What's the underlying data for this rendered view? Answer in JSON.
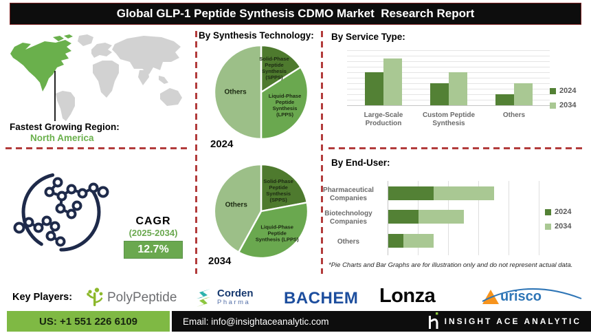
{
  "title": "Global GLP-1 Peptide Synthesis CDMO Market  Research Report",
  "region": {
    "label": "Fastest Growing Region:",
    "value": "North America"
  },
  "cagr": {
    "label": "CAGR",
    "period": "(2025-2034)",
    "value": "12.7%"
  },
  "footnote": "*Pie Charts and Bar Graphs are for illustration only and do not represent actual data.",
  "key_players": {
    "label": "Key Players:",
    "companies": [
      {
        "name": "PolyPeptide",
        "wordmark": "PolyPeptide"
      },
      {
        "name": "Corden Pharma",
        "line1": "Corden",
        "line2": "Pharma"
      },
      {
        "name": "BACHEM",
        "wordmark": "BACHEM"
      },
      {
        "name": "Lonza",
        "wordmark": "Lonza"
      },
      {
        "name": "Aurisco",
        "wordmark": "urisco"
      }
    ]
  },
  "footer": {
    "phone": "US: +1 551 226 6109",
    "email": "Email: info@insightaceanalytic.com",
    "brand": "INSIGHT ACE ANALYTIC"
  },
  "colors": {
    "accent_red": "#b23b3b",
    "title_bg": "#0d0d0d",
    "map_green": "#6ab04c",
    "pie_spps": "#4e7a2e",
    "pie_lpps": "#6aa84f",
    "pie_others": "#9cbf88",
    "bar_2024": "#538135",
    "bar_2034": "#a9c893",
    "molecule_navy": "#1e2a4a",
    "footer_green": "#7fb944"
  },
  "chart_data": [
    {
      "type": "pie",
      "title": "By Synthesis Technology:",
      "year": "2024",
      "slices": [
        {
          "label": "Solid-Phase Peptide Synthesis (SPPS)",
          "label_lines": [
            "Solid-Phase",
            "Peptide",
            "Synthesis",
            "(SPPS)"
          ],
          "value": 16,
          "color": "#4e7a2e"
        },
        {
          "label": "Liquid-Phase Peptide Synthesis (LPPS)",
          "label_lines": [
            "Liquid-Phase",
            "Peptide",
            "Synthesis",
            "(LPPS)"
          ],
          "value": 34,
          "color": "#6aa84f"
        },
        {
          "label": "Others",
          "label_lines": [
            "Others"
          ],
          "value": 50,
          "color": "#9cbf88"
        }
      ]
    },
    {
      "type": "pie",
      "title": "By Synthesis Technology:",
      "year": "2034",
      "slices": [
        {
          "label": "Solid-Phase Peptide Synthesis (SPPS)",
          "label_lines": [
            "Solid-Phase",
            "Peptide",
            "Synthesis",
            "(SPPS)"
          ],
          "value": 22,
          "color": "#4e7a2e"
        },
        {
          "label": "Liquid-Phase Peptide Synthesis (LPPS)",
          "label_lines": [
            "Liquid-Phase",
            "Peptide",
            "Synthesis (LPPS)"
          ],
          "value": 36,
          "color": "#6aa84f"
        },
        {
          "label": "Others",
          "label_lines": [
            "Others"
          ],
          "value": 42,
          "color": "#9cbf88"
        }
      ]
    },
    {
      "type": "bar",
      "title": "By Service Type:",
      "categories": [
        "Large-Scale Production",
        "Custom Peptide Synthesis",
        "Others"
      ],
      "categories_lines": [
        [
          "Large-Scale",
          "Production"
        ],
        [
          "Custom Peptide",
          "Synthesis"
        ],
        [
          "Others"
        ]
      ],
      "series": [
        {
          "name": "2024",
          "color": "#538135",
          "values": [
            60,
            40,
            20
          ]
        },
        {
          "name": "2034",
          "color": "#a9c893",
          "values": [
            85,
            60,
            40
          ]
        }
      ],
      "ylim": [
        0,
        100
      ],
      "grid": "horizontal",
      "legend_position": "right"
    },
    {
      "type": "bar",
      "subtype": "horizontal-stacked",
      "title": "By End-User:",
      "categories": [
        "Pharmaceutical Companies",
        "Biotechnology Companies",
        "Others"
      ],
      "categories_lines": [
        [
          "Pharmaceutical",
          "Companies"
        ],
        [
          "Biotechnology",
          "Companies"
        ],
        [
          "Others"
        ]
      ],
      "series": [
        {
          "name": "2024",
          "color": "#538135",
          "values": [
            15,
            10,
            5
          ]
        },
        {
          "name": "2034",
          "color": "#a9c893",
          "values": [
            20,
            15,
            10
          ]
        }
      ],
      "xlim": [
        0,
        50
      ],
      "grid": "vertical",
      "legend_position": "right"
    }
  ]
}
